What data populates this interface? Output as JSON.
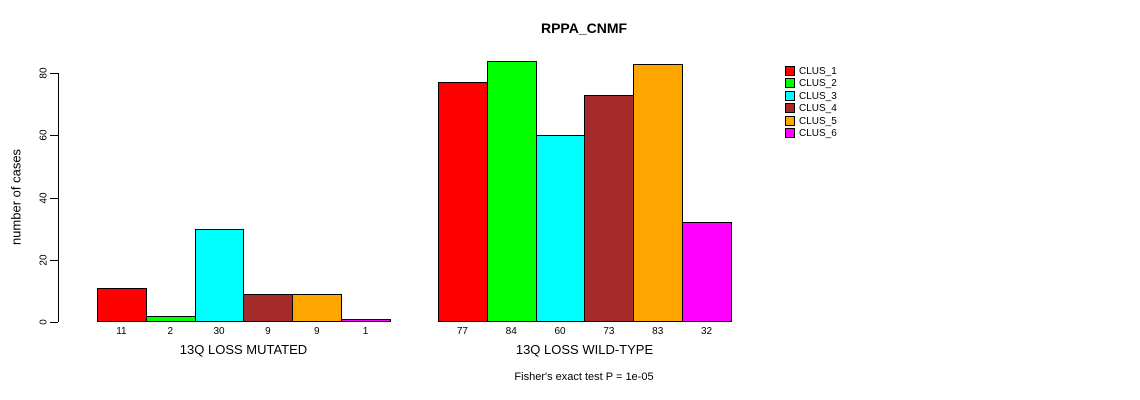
{
  "chart_data": {
    "type": "bar",
    "title": "RPPA_CNMF",
    "ylabel": "number of cases",
    "xlabel": "",
    "categories": [
      "13Q LOSS MUTATED",
      "13Q LOSS WILD-TYPE"
    ],
    "series": [
      {
        "name": "CLUS_1",
        "color": "#FF0000",
        "values": [
          11,
          77
        ]
      },
      {
        "name": "CLUS_2",
        "color": "#00FF00",
        "values": [
          2,
          84
        ]
      },
      {
        "name": "CLUS_3",
        "color": "#00FFFF",
        "values": [
          30,
          60
        ]
      },
      {
        "name": "CLUS_4",
        "color": "#A52A2A",
        "values": [
          9,
          73
        ]
      },
      {
        "name": "CLUS_5",
        "color": "#FFA500",
        "values": [
          9,
          83
        ]
      },
      {
        "name": "CLUS_6",
        "color": "#FF00FF",
        "values": [
          1,
          32
        ]
      }
    ],
    "yticks": [
      0,
      20,
      40,
      60,
      80
    ],
    "ylim": [
      0,
      84
    ],
    "grid": false,
    "legend_position": "right",
    "bar_value_labels": true,
    "annotation": "Fisher's exact test P = 1e-05"
  }
}
